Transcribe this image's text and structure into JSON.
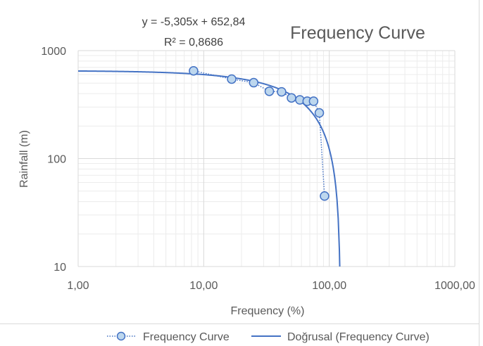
{
  "chart_data": {
    "type": "scatter",
    "title": "Frequency Curve",
    "xlabel": "Frequency (%)",
    "ylabel": "Rainfall (m)",
    "x_scale": "log",
    "y_scale": "log",
    "xlim": [
      1,
      1000
    ],
    "ylim": [
      10,
      1000
    ],
    "x_ticks": [
      "1,00",
      "10,00",
      "100,00",
      "1000,00"
    ],
    "y_ticks": [
      "10",
      "100",
      "1000"
    ],
    "grid": true,
    "legend_position": "bottom",
    "series": [
      {
        "name": "Frequency Curve",
        "style": "markers with dotted line",
        "color": "#4472c4",
        "marker_fill": "#bdd7ee",
        "x": [
          8.3,
          16.7,
          25.0,
          33.3,
          41.7,
          50.0,
          58.3,
          66.7,
          75.0,
          83.3,
          91.7
        ],
        "y": [
          650,
          545,
          505,
          420,
          415,
          365,
          350,
          340,
          340,
          265,
          45
        ]
      },
      {
        "name": "Doğrusal (Frequency Curve)",
        "style": "solid line",
        "color": "#4472c4",
        "fit": {
          "slope": -5.305,
          "intercept": 652.84
        }
      }
    ],
    "annotations": {
      "equation": "y = -5,305x + 652,84",
      "r_squared": "R² = 0,8686"
    }
  }
}
